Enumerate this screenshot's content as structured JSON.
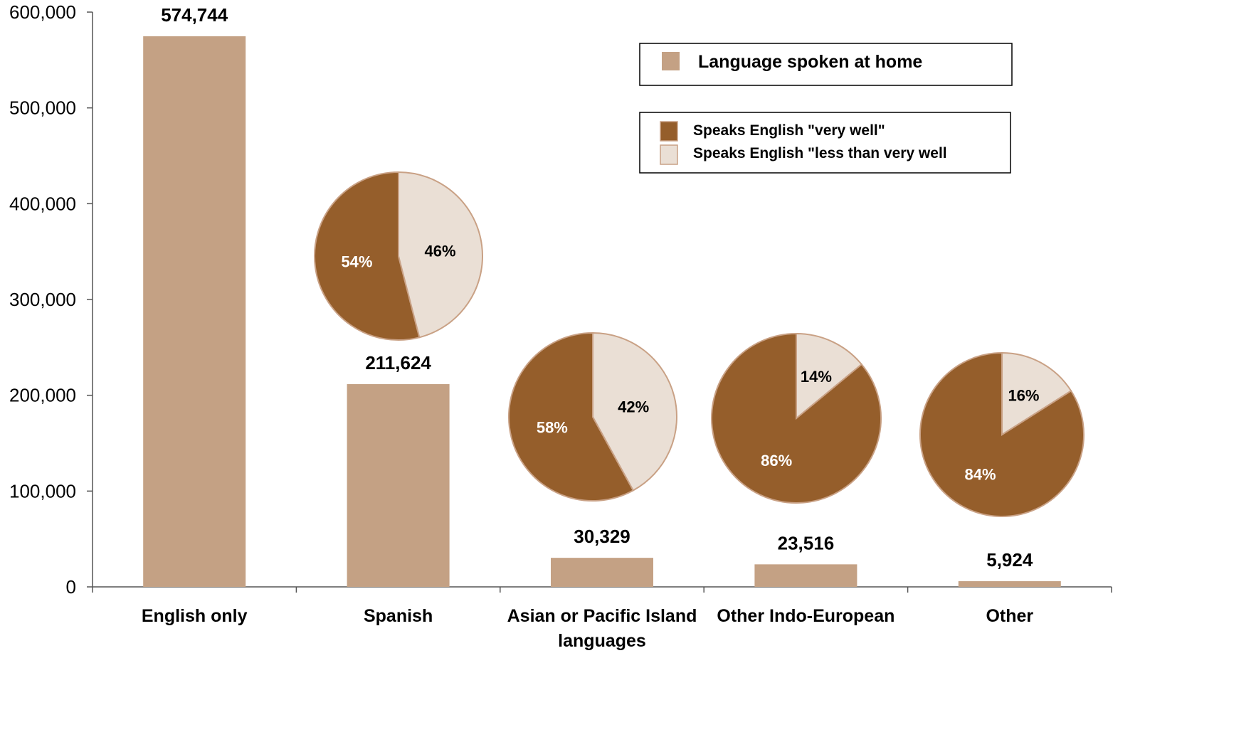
{
  "chart_data": {
    "type": "bar",
    "categories": [
      "English only",
      "Spanish",
      "Asian or Pacific Island languages",
      "Other Indo-European",
      "Other"
    ],
    "category_lines": [
      [
        "English only"
      ],
      [
        "Spanish"
      ],
      [
        "Asian or Pacific Island",
        "languages"
      ],
      [
        "Other Indo-European"
      ],
      [
        "Other"
      ]
    ],
    "values": [
      574744,
      211624,
      30329,
      23516,
      5924
    ],
    "value_labels": [
      "574,744",
      "211,624",
      "30,329",
      "23,516",
      "5,924"
    ],
    "ylim": [
      0,
      600000
    ],
    "yticks": [
      0,
      100000,
      200000,
      300000,
      400000,
      500000,
      600000
    ],
    "ytick_labels": [
      "0",
      "100,000",
      "200,000",
      "300,000",
      "400,000",
      "500,000",
      "600,000"
    ],
    "bar_series_name": "Language spoken at home",
    "pie_series_names": [
      "Speaks English \"very well\"",
      "Speaks English \"less than very well"
    ],
    "pies": [
      {
        "category": "Spanish",
        "very_well": 54,
        "less_than_very_well": 46,
        "labels": [
          "54%",
          "46%"
        ]
      },
      {
        "category": "Asian or Pacific Island languages",
        "very_well": 58,
        "less_than_very_well": 42,
        "labels": [
          "58%",
          "42%"
        ]
      },
      {
        "category": "Other Indo-European",
        "very_well": 86,
        "less_than_very_well": 14,
        "labels": [
          "86%",
          "14%"
        ]
      },
      {
        "category": "Other",
        "very_well": 84,
        "less_than_very_well": 16,
        "labels": [
          "84%",
          "16%"
        ]
      }
    ],
    "legend_placement": "top-right",
    "grid": false
  },
  "colors": {
    "bar": "#c4a184",
    "very_well": "#955e2b",
    "less_than_very_well": "#eadfd5",
    "pie_edge": "#c9a185",
    "axis": "#555555"
  }
}
